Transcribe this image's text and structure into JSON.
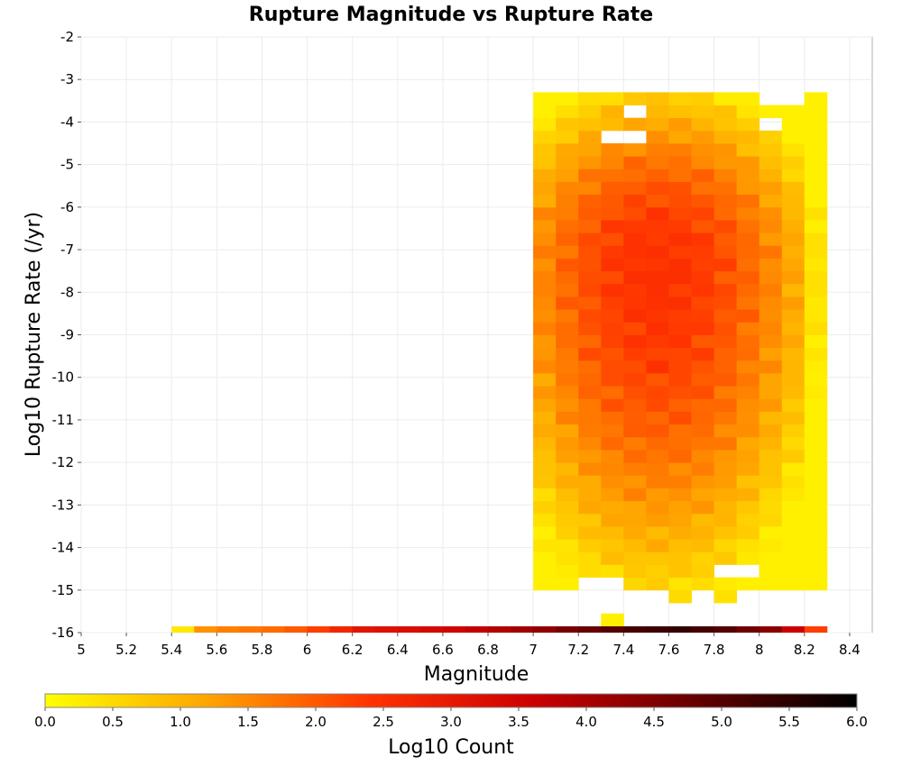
{
  "chart_data": {
    "type": "heatmap",
    "title": "Rupture Magnitude vs Rupture Rate",
    "xlabel": "Magnitude",
    "ylabel": "Log10 Rupture Rate (/yr)",
    "colorbar_label": "Log10 Count",
    "xlim": [
      5.0,
      8.5
    ],
    "ylim": [
      -16,
      -2
    ],
    "x_ticks": [
      "5",
      "5.2",
      "5.4",
      "5.6",
      "5.8",
      "6",
      "6.2",
      "6.4",
      "6.6",
      "6.8",
      "7",
      "7.2",
      "7.4",
      "7.6",
      "7.8",
      "8",
      "8.2",
      "8.4"
    ],
    "y_ticks": [
      "-2",
      "-3",
      "-4",
      "-5",
      "-6",
      "-7",
      "-8",
      "-9",
      "-10",
      "-11",
      "-12",
      "-13",
      "-14",
      "-15",
      "-16"
    ],
    "colorbar_ticks": [
      "0.0",
      "0.5",
      "1.0",
      "1.5",
      "2.0",
      "2.5",
      "3.0",
      "3.5",
      "4.0",
      "4.5",
      "5.0",
      "5.5",
      "6.0"
    ],
    "color_range": [
      0.0,
      6.0
    ],
    "colormap": [
      "#ffff00",
      "#ffa500",
      "#ff3300",
      "#cc0000",
      "#660000",
      "#000000"
    ],
    "bin_width_magnitude": 0.1,
    "bin_height_log_rate": 0.3,
    "bottom_row": {
      "log_rate": -16,
      "magnitudes": [
        5.45,
        5.55,
        5.65,
        5.75,
        5.85,
        5.95,
        6.05,
        6.15,
        6.25,
        6.35,
        6.45,
        6.55,
        6.65,
        6.75,
        6.85,
        6.95,
        7.05,
        7.15,
        7.25,
        7.35,
        7.45,
        7.55,
        7.65,
        7.75,
        7.85,
        7.95,
        8.05,
        8.15,
        8.25
      ],
      "values": [
        0.3,
        1.4,
        1.6,
        1.7,
        1.8,
        2.0,
        2.3,
        2.7,
        3.1,
        3.2,
        3.3,
        3.4,
        3.5,
        3.7,
        3.9,
        4.1,
        4.3,
        4.6,
        4.8,
        5.0,
        5.2,
        5.3,
        5.4,
        5.2,
        5.0,
        4.7,
        4.4,
        3.6,
        2.3
      ]
    },
    "main_block": {
      "magnitude_range": [
        7.0,
        8.3
      ],
      "log_rate_range": [
        -15.0,
        -3.3
      ],
      "peak_value": 2.5,
      "edge_value": 0.2,
      "isolated_cells": [
        [
          7.35,
          -15.7,
          0.2
        ],
        [
          7.65,
          -15.15,
          0.5
        ],
        [
          7.85,
          -15.15,
          0.4
        ]
      ]
    }
  }
}
